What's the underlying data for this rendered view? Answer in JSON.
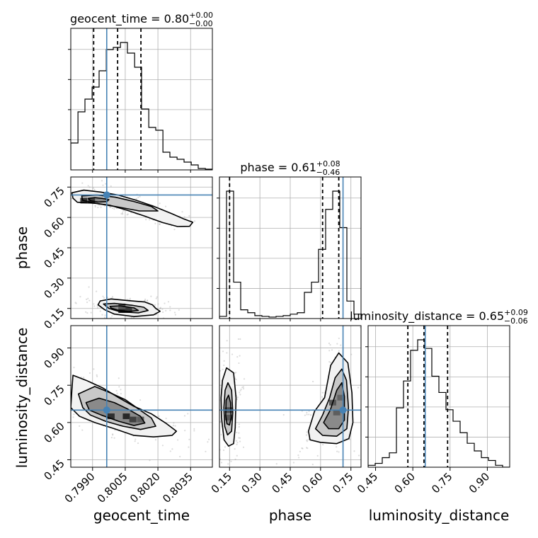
{
  "chart_data": {
    "type": "corner",
    "parameters": [
      "geocent_time",
      "phase",
      "luminosity_distance"
    ],
    "axis_labels": {
      "geocent_time": "geocent_time",
      "phase": "phase",
      "luminosity_distance": "luminosity_distance"
    },
    "titles": [
      {
        "param": "geocent_time",
        "text": "geocent_time = 0.80",
        "plus": "+0.00",
        "minus": "−0.00"
      },
      {
        "param": "phase",
        "text": "phase = 0.61",
        "plus": "+0.08",
        "minus": "−0.46"
      },
      {
        "param": "luminosity_distance",
        "text": "luminosity_distance = 0.65",
        "plus": "+0.09",
        "minus": "−0.06"
      }
    ],
    "ranges": {
      "geocent_time": [
        0.798,
        0.8045
      ],
      "phase": [
        0.1,
        0.8
      ],
      "luminosity_distance": [
        0.42,
        0.99
      ]
    },
    "ticks": {
      "geocent_time": [
        "0.7990",
        "0.8005",
        "0.8020",
        "0.8035"
      ],
      "phase": [
        "0.15",
        "0.30",
        "0.45",
        "0.60",
        "0.75"
      ],
      "luminosity_distance": [
        "0.45",
        "0.60",
        "0.75",
        "0.90"
      ]
    },
    "truths": {
      "geocent_time": 0.79965,
      "phase": 0.711,
      "luminosity_distance": 0.65
    },
    "quantiles": {
      "geocent_time": [
        0.79905,
        0.80015,
        0.80122
      ],
      "phase": [
        0.15,
        0.61,
        0.69
      ],
      "luminosity_distance": [
        0.58,
        0.645,
        0.74
      ]
    },
    "histograms": {
      "geocent_time": {
        "edges": [
          0.798,
          0.79833,
          0.79865,
          0.79898,
          0.7993,
          0.79963,
          0.79995,
          0.80028,
          0.8006,
          0.80093,
          0.80125,
          0.80158,
          0.8019,
          0.80223,
          0.80255,
          0.80288,
          0.8032,
          0.80353,
          0.80385,
          0.80418,
          0.8045
        ],
        "counts": [
          38,
          82,
          100,
          117,
          140,
          170,
          173,
          180,
          165,
          145,
          86,
          60,
          56,
          25,
          18,
          15,
          11,
          7,
          2,
          1
        ]
      },
      "phase": {
        "edges": [
          0.1,
          0.135,
          0.17,
          0.205,
          0.24,
          0.275,
          0.31,
          0.345,
          0.38,
          0.415,
          0.45,
          0.485,
          0.52,
          0.555,
          0.59,
          0.625,
          0.66,
          0.695,
          0.73,
          0.765,
          0.8
        ],
        "counts": [
          3,
          175,
          50,
          12,
          8,
          4,
          3,
          2,
          3,
          4,
          6,
          8,
          36,
          50,
          95,
          150,
          175,
          125,
          24,
          6
        ]
      },
      "luminosity_distance": {
        "edges": [
          0.42,
          0.4485,
          0.477,
          0.5055,
          0.534,
          0.5625,
          0.591,
          0.6195,
          0.648,
          0.6765,
          0.705,
          0.7335,
          0.762,
          0.7905,
          0.819,
          0.8475,
          0.876,
          0.9045,
          0.933,
          0.9615,
          0.99
        ],
        "counts": [
          2,
          4,
          10,
          15,
          62,
          90,
          122,
          133,
          124,
          95,
          78,
          60,
          48,
          36,
          25,
          17,
          10,
          7,
          2,
          0
        ]
      }
    },
    "contours": {
      "geocent_time|phase": [
        {
          "level": 1,
          "points": [
            [
              0.79805,
              0.722
            ],
            [
              0.7986,
              0.735
            ],
            [
              0.7994,
              0.725
            ],
            [
              0.8002,
              0.71
            ],
            [
              0.801,
              0.685
            ],
            [
              0.8018,
              0.655
            ],
            [
              0.80265,
              0.618
            ],
            [
              0.8032,
              0.592
            ],
            [
              0.8036,
              0.576
            ],
            [
              0.80345,
              0.556
            ],
            [
              0.8029,
              0.555
            ],
            [
              0.8022,
              0.575
            ],
            [
              0.8014,
              0.606
            ],
            [
              0.8006,
              0.635
            ],
            [
              0.7998,
              0.66
            ],
            [
              0.7991,
              0.67
            ],
            [
              0.7983,
              0.675
            ],
            [
              0.7981,
              0.695
            ]
          ]
        },
        {
          "level": 2,
          "points": [
            [
              0.7985,
              0.706
            ],
            [
              0.7992,
              0.711
            ],
            [
              0.80005,
              0.7
            ],
            [
              0.80085,
              0.68
            ],
            [
              0.8017,
              0.654
            ],
            [
              0.802,
              0.632
            ],
            [
              0.80115,
              0.632
            ],
            [
              0.8001,
              0.653
            ],
            [
              0.79925,
              0.668
            ],
            [
              0.79855,
              0.684
            ]
          ]
        },
        {
          "level": 3,
          "points": [
            [
              0.7988,
              0.694
            ],
            [
              0.7991,
              0.698
            ],
            [
              0.79945,
              0.694
            ],
            [
              0.79975,
              0.688
            ],
            [
              0.79965,
              0.678
            ],
            [
              0.79925,
              0.676
            ],
            [
              0.7989,
              0.683
            ]
          ]
        },
        {
          "level": 1,
          "points": [
            [
              0.79935,
              0.187
            ],
            [
              0.79985,
              0.197
            ],
            [
              0.8007,
              0.188
            ],
            [
              0.8014,
              0.182
            ],
            [
              0.80175,
              0.168
            ],
            [
              0.8019,
              0.15
            ],
            [
              0.8021,
              0.136
            ],
            [
              0.8018,
              0.118
            ],
            [
              0.8009,
              0.11
            ],
            [
              0.8,
              0.122
            ],
            [
              0.79955,
              0.144
            ],
            [
              0.79925,
              0.168
            ]
          ]
        },
        {
          "level": 2,
          "points": [
            [
              0.7995,
              0.172
            ],
            [
              0.8,
              0.175
            ],
            [
              0.8008,
              0.166
            ],
            [
              0.80135,
              0.156
            ],
            [
              0.80155,
              0.14
            ],
            [
              0.8011,
              0.128
            ],
            [
              0.80025,
              0.134
            ],
            [
              0.79975,
              0.15
            ]
          ]
        },
        {
          "level": 3,
          "points": [
            [
              0.7998,
              0.16
            ],
            [
              0.80025,
              0.163
            ],
            [
              0.8009,
              0.153
            ],
            [
              0.8011,
              0.14
            ],
            [
              0.80065,
              0.135
            ],
            [
              0.80015,
              0.142
            ],
            [
              0.79985,
              0.152
            ]
          ]
        }
      ],
      "geocent_time|luminosity_distance": [
        {
          "level": 1,
          "points": [
            [
              0.7981,
              0.79
            ],
            [
              0.7987,
              0.77
            ],
            [
              0.79945,
              0.74
            ],
            [
              0.8002,
              0.7
            ],
            [
              0.8009,
              0.665
            ],
            [
              0.8017,
              0.635
            ],
            [
              0.8024,
              0.595
            ],
            [
              0.80285,
              0.565
            ],
            [
              0.80265,
              0.548
            ],
            [
              0.8018,
              0.542
            ],
            [
              0.8009,
              0.548
            ],
            [
              0.8,
              0.575
            ],
            [
              0.7991,
              0.6
            ],
            [
              0.7984,
              0.625
            ],
            [
              0.798,
              0.66
            ],
            [
              0.79805,
              0.73
            ]
          ]
        },
        {
          "level": 2,
          "points": [
            [
              0.79835,
              0.715
            ],
            [
              0.7991,
              0.745
            ],
            [
              0.7998,
              0.72
            ],
            [
              0.8005,
              0.692
            ],
            [
              0.8011,
              0.655
            ],
            [
              0.8017,
              0.618
            ],
            [
              0.8019,
              0.585
            ],
            [
              0.8012,
              0.572
            ],
            [
              0.8004,
              0.585
            ],
            [
              0.7996,
              0.605
            ],
            [
              0.7989,
              0.63
            ],
            [
              0.79855,
              0.66
            ]
          ]
        },
        {
          "level": 3,
          "points": [
            [
              0.7987,
              0.68
            ],
            [
              0.7993,
              0.698
            ],
            [
              0.8,
              0.68
            ],
            [
              0.8006,
              0.655
            ],
            [
              0.8012,
              0.625
            ],
            [
              0.8014,
              0.598
            ],
            [
              0.8009,
              0.588
            ],
            [
              0.8002,
              0.605
            ],
            [
              0.7994,
              0.63
            ],
            [
              0.79885,
              0.65
            ]
          ]
        }
      ],
      "phase|luminosity_distance": [
        {
          "level": 1,
          "points": [
            [
              0.115,
              0.77
            ],
            [
              0.135,
              0.82
            ],
            [
              0.17,
              0.8
            ],
            [
              0.182,
              0.7
            ],
            [
              0.178,
              0.58
            ],
            [
              0.17,
              0.515
            ],
            [
              0.145,
              0.505
            ],
            [
              0.123,
              0.53
            ],
            [
              0.11,
              0.62
            ],
            [
              0.108,
              0.7
            ]
          ]
        },
        {
          "level": 2,
          "points": [
            [
              0.128,
              0.73
            ],
            [
              0.142,
              0.76
            ],
            [
              0.16,
              0.73
            ],
            [
              0.166,
              0.64
            ],
            [
              0.16,
              0.565
            ],
            [
              0.14,
              0.55
            ],
            [
              0.126,
              0.585
            ],
            [
              0.122,
              0.66
            ]
          ]
        },
        {
          "level": 3,
          "points": [
            [
              0.133,
              0.69
            ],
            [
              0.145,
              0.71
            ],
            [
              0.155,
              0.68
            ],
            [
              0.158,
              0.62
            ],
            [
              0.15,
              0.59
            ],
            [
              0.137,
              0.595
            ],
            [
              0.131,
              0.63
            ]
          ]
        },
        {
          "level": 1,
          "points": [
            [
              0.54,
              0.565
            ],
            [
              0.57,
              0.645
            ],
            [
              0.62,
              0.7
            ],
            [
              0.65,
              0.83
            ],
            [
              0.69,
              0.88
            ],
            [
              0.735,
              0.84
            ],
            [
              0.755,
              0.72
            ],
            [
              0.76,
              0.6
            ],
            [
              0.74,
              0.535
            ],
            [
              0.68,
              0.515
            ],
            [
              0.6,
              0.52
            ],
            [
              0.548,
              0.53
            ]
          ]
        },
        {
          "level": 2,
          "points": [
            [
              0.575,
              0.575
            ],
            [
              0.61,
              0.63
            ],
            [
              0.645,
              0.7
            ],
            [
              0.672,
              0.78
            ],
            [
              0.705,
              0.815
            ],
            [
              0.728,
              0.77
            ],
            [
              0.738,
              0.66
            ],
            [
              0.73,
              0.575
            ],
            [
              0.68,
              0.545
            ],
            [
              0.61,
              0.548
            ]
          ]
        },
        {
          "level": 3,
          "points": [
            [
              0.615,
              0.6
            ],
            [
              0.648,
              0.65
            ],
            [
              0.68,
              0.73
            ],
            [
              0.705,
              0.76
            ],
            [
              0.718,
              0.705
            ],
            [
              0.718,
              0.61
            ],
            [
              0.69,
              0.575
            ],
            [
              0.64,
              0.575
            ]
          ]
        }
      ]
    },
    "density_cells": {
      "geocent_time|phase": [
        [
          0.7986,
          0.683,
          0.9
        ],
        [
          0.79895,
          0.683,
          0.8
        ],
        [
          0.80035,
          0.142,
          1.0
        ],
        [
          0.80065,
          0.142,
          0.85
        ],
        [
          0.80035,
          0.16,
          0.6
        ]
      ],
      "geocent_time|luminosity_distance": [
        [
          0.79985,
          0.625,
          0.95
        ],
        [
          0.80055,
          0.625,
          1.0
        ],
        [
          0.80085,
          0.612,
          0.8
        ],
        [
          0.8012,
          0.612,
          0.55
        ]
      ],
      "phase|luminosity_distance": [
        [
          0.145,
          0.65,
          0.7
        ],
        [
          0.145,
          0.62,
          0.6
        ],
        [
          0.66,
          0.68,
          0.6
        ],
        [
          0.68,
          0.64,
          0.55
        ],
        [
          0.7,
          0.7,
          0.5
        ]
      ]
    },
    "grid": true,
    "colors": {
      "truth": "#4682b4",
      "line": "#000000",
      "grid": "#b0b0b0",
      "scatter": "#9a9a9a"
    }
  }
}
